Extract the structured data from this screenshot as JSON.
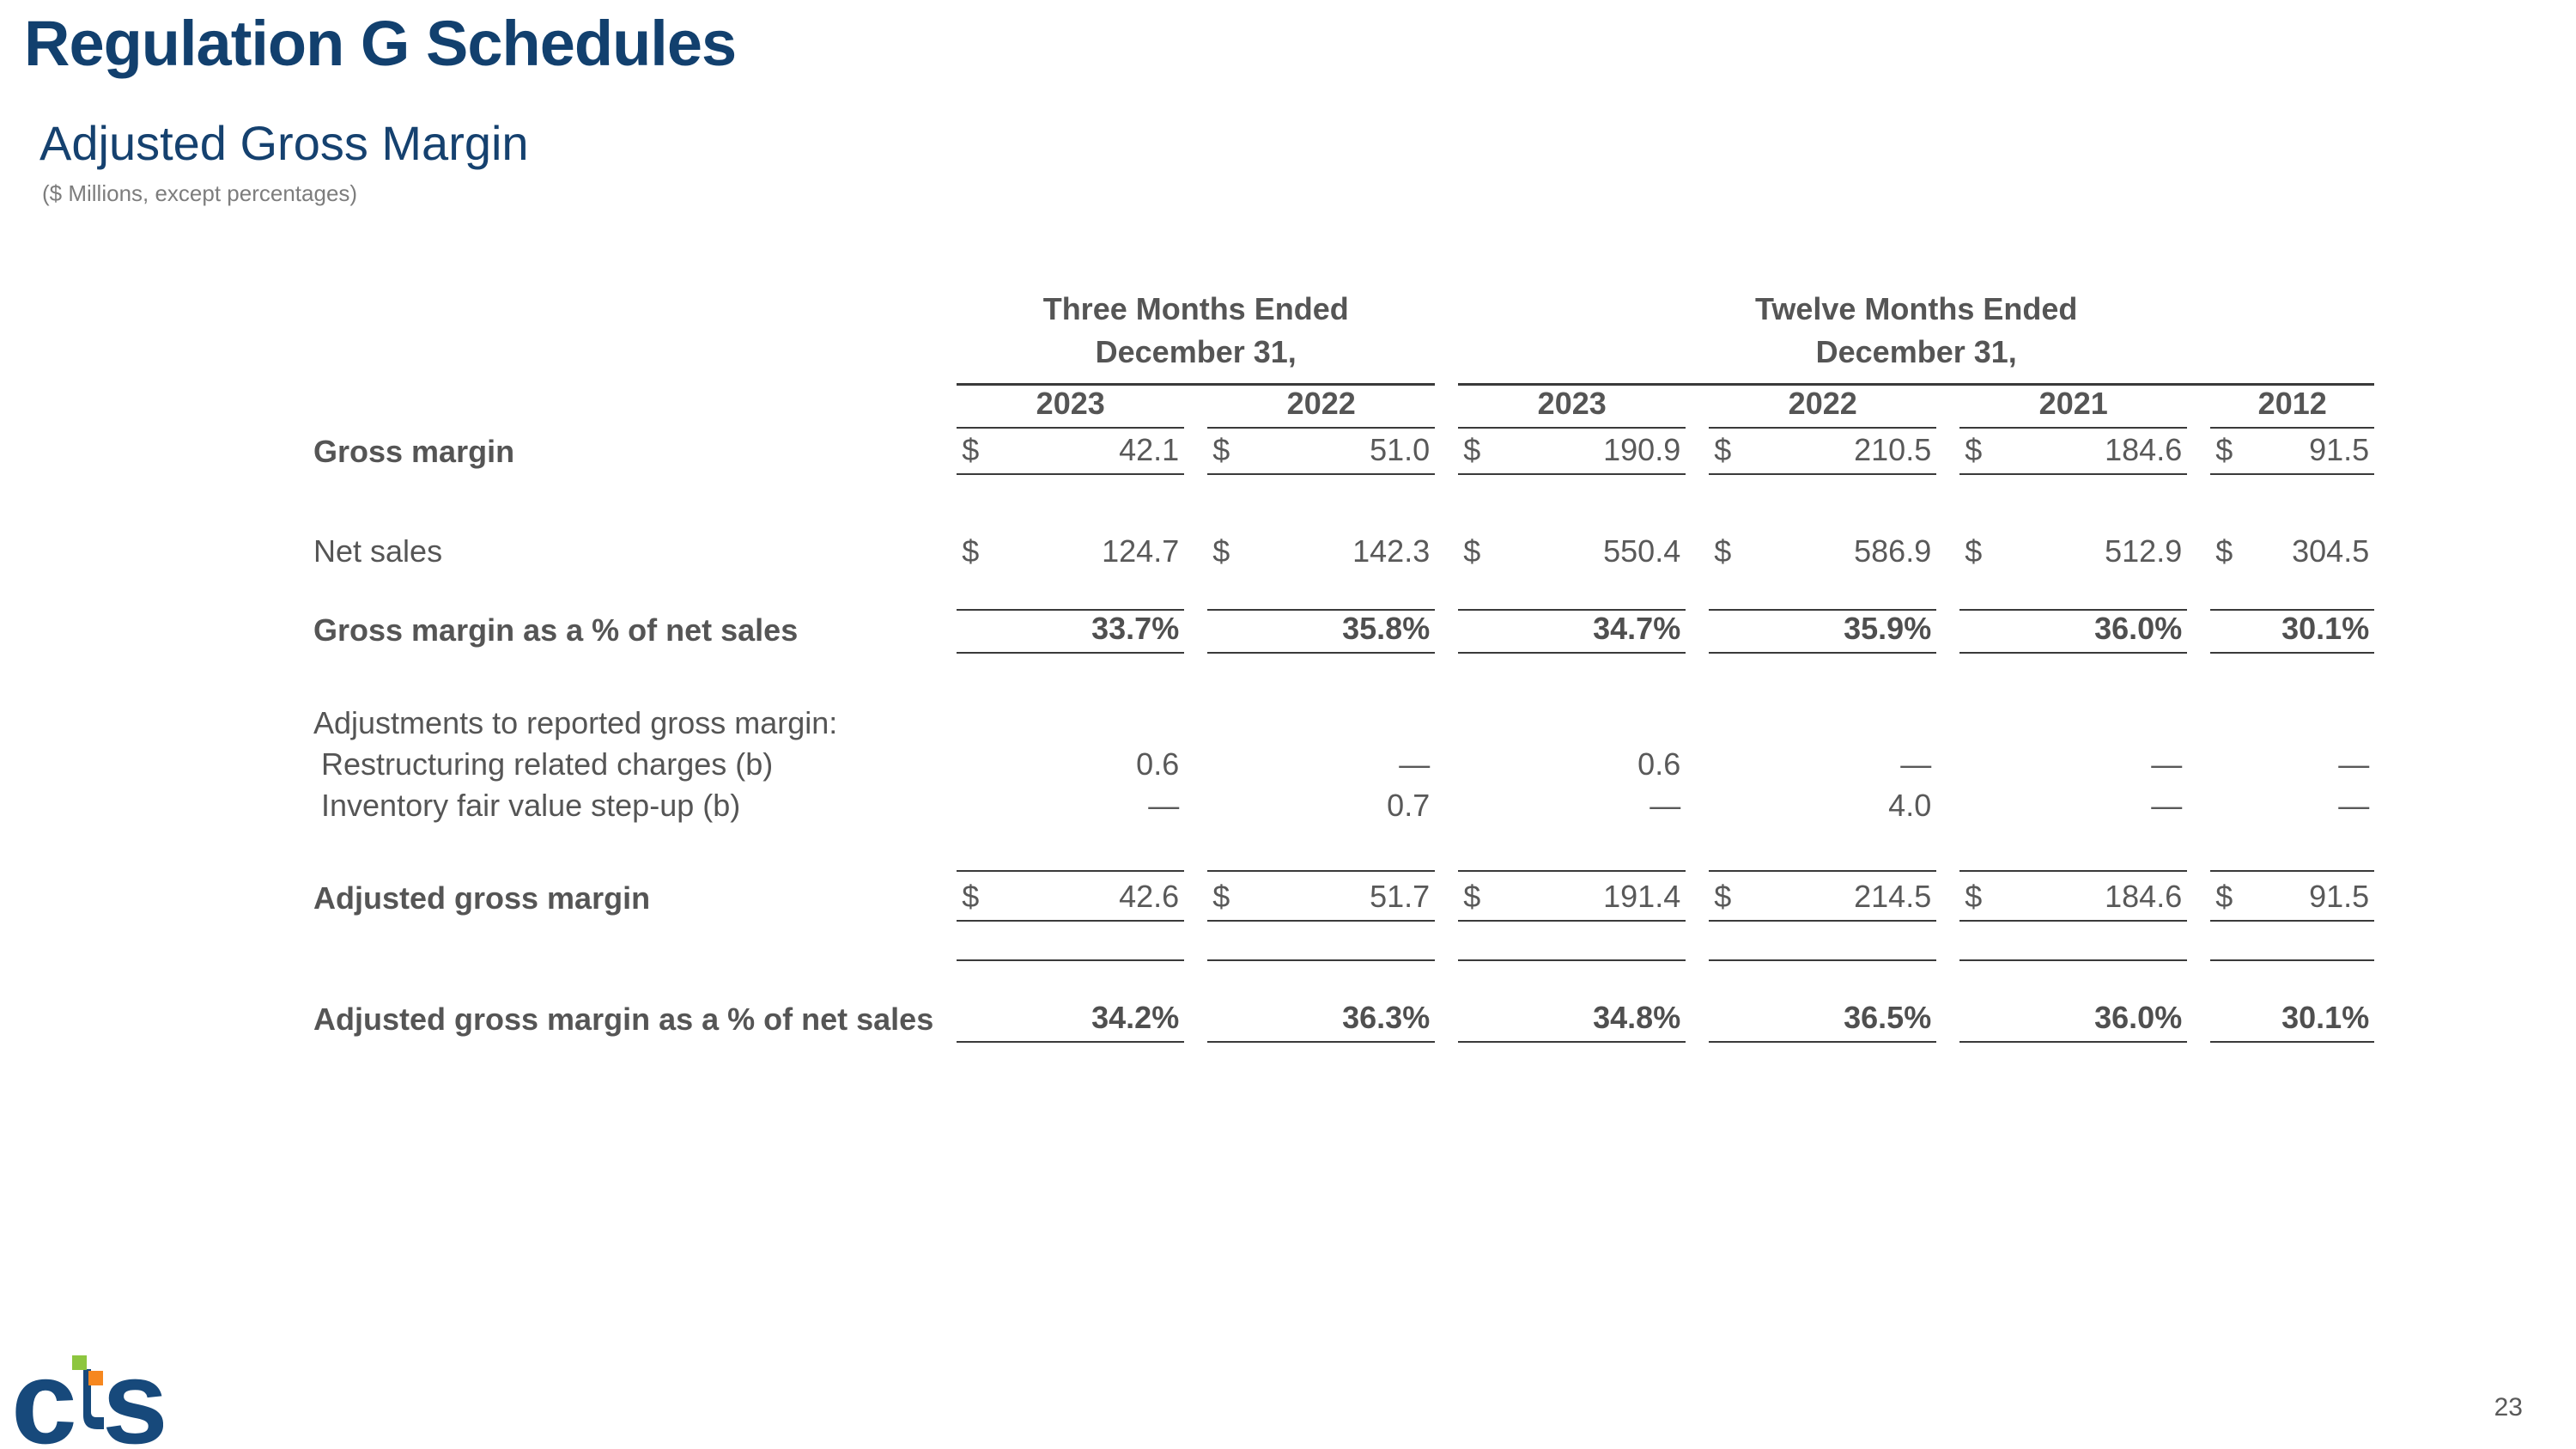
{
  "slide": {
    "title": "Regulation G Schedules",
    "subtitle": "Adjusted Gross Margin",
    "units_note": "($ Millions, except percentages)",
    "page_number": "23",
    "logo": {
      "letter_c": "c",
      "letter_s": "s",
      "navy": "#17497B",
      "green": "#8DC63F",
      "orange": "#F6871F"
    }
  },
  "table": {
    "currency_symbol": "$",
    "column_groups": [
      {
        "line1": "Three Months Ended",
        "line2": "December 31,",
        "span": 2
      },
      {
        "line1": "Twelve Months Ended",
        "line2": "December 31,",
        "span": 4
      }
    ],
    "year_headers": [
      "2023",
      "2022",
      "2023",
      "2022",
      "2021",
      "2012"
    ],
    "rows": [
      {
        "id": "gross-margin",
        "label": "Gross margin",
        "bold": true,
        "dollar": true,
        "values": [
          "42.1",
          "51.0",
          "190.9",
          "210.5",
          "184.6",
          "91.5"
        ],
        "underline": true
      },
      {
        "id": "net-sales",
        "label": "Net sales",
        "bold": false,
        "dollar": true,
        "values": [
          "124.7",
          "142.3",
          "550.4",
          "586.9",
          "512.9",
          "304.5"
        ],
        "underline": false
      },
      {
        "id": "gross-margin-pct",
        "label": "Gross margin as a % of net sales",
        "bold": true,
        "percent": true,
        "values": [
          "33.7%",
          "35.8%",
          "34.7%",
          "35.9%",
          "36.0%",
          "30.1%"
        ],
        "overline": true,
        "underline": true
      },
      {
        "id": "adjustments-header",
        "label": "Adjustments to reported gross margin:",
        "bold": false
      },
      {
        "id": "restructuring-charges",
        "label": "Restructuring related charges (b)",
        "indent": true,
        "values": [
          "0.6",
          "—",
          "0.6",
          "—",
          "—",
          "—"
        ]
      },
      {
        "id": "inventory-step-up",
        "label": "Inventory fair value step-up (b)",
        "indent": true,
        "values": [
          "—",
          "0.7",
          "—",
          "4.0",
          "—",
          "—"
        ]
      },
      {
        "id": "adjusted-gross-margin",
        "label": "Adjusted gross margin",
        "bold": true,
        "dollar": true,
        "values": [
          "42.6",
          "51.7",
          "191.4",
          "214.5",
          "184.6",
          "91.5"
        ],
        "underline": true
      },
      {
        "id": "adjusted-gross-margin-pct",
        "label": "Adjusted gross margin as a % of net sales",
        "bold": true,
        "percent": true,
        "values": [
          "34.2%",
          "36.3%",
          "34.8%",
          "36.5%",
          "36.0%",
          "30.1%"
        ],
        "underline": true
      }
    ]
  }
}
